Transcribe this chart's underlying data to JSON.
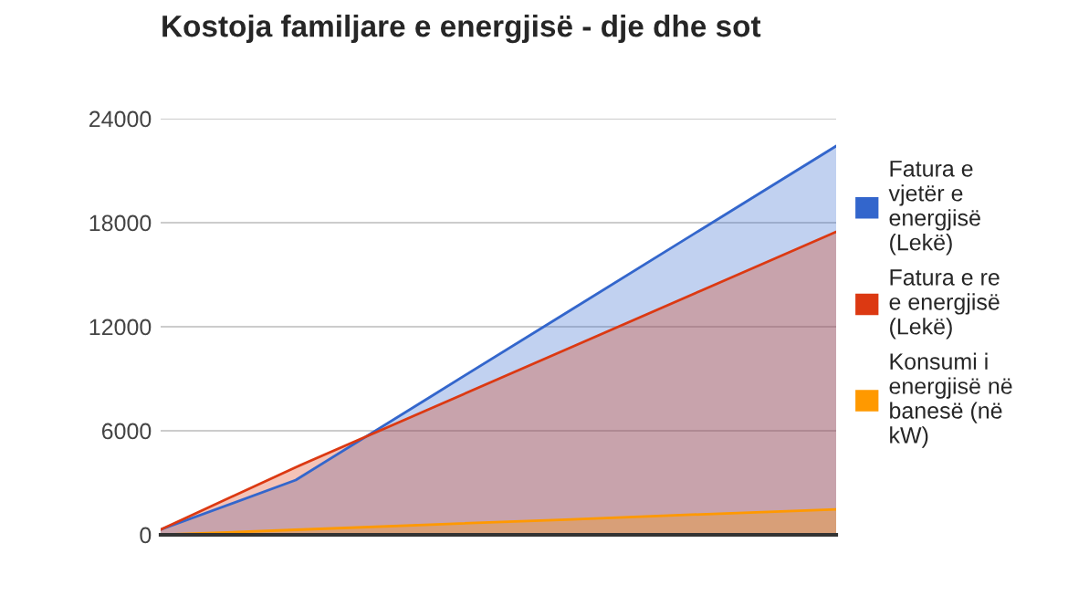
{
  "chart_data": {
    "type": "area",
    "title": "Kostoja familjare e energjisë - dje dhe sot",
    "categories": [
      null,
      null,
      null,
      null,
      null,
      null
    ],
    "series": [
      {
        "name": "Fatura e vjetër e energjisë (Lekë)",
        "color": "#3366cc",
        "values": [
          300,
          3160,
          7975,
          12790,
          17605,
          22420
        ]
      },
      {
        "name": "Fatura e re e energjisë (Lekë)",
        "color": "#dc3912",
        "values": [
          300,
          3900,
          7290,
          10680,
          14080,
          17470
        ]
      },
      {
        "name": "Konsumi i energjisë në banesë (në kW)",
        "color": "#ff9900",
        "values": [
          0,
          290,
          590,
          880,
          1180,
          1470
        ]
      }
    ],
    "ylim": [
      0,
      24000
    ],
    "yticks": [
      0,
      6000,
      12000,
      18000,
      24000
    ],
    "grid": "y",
    "legend": "right"
  }
}
